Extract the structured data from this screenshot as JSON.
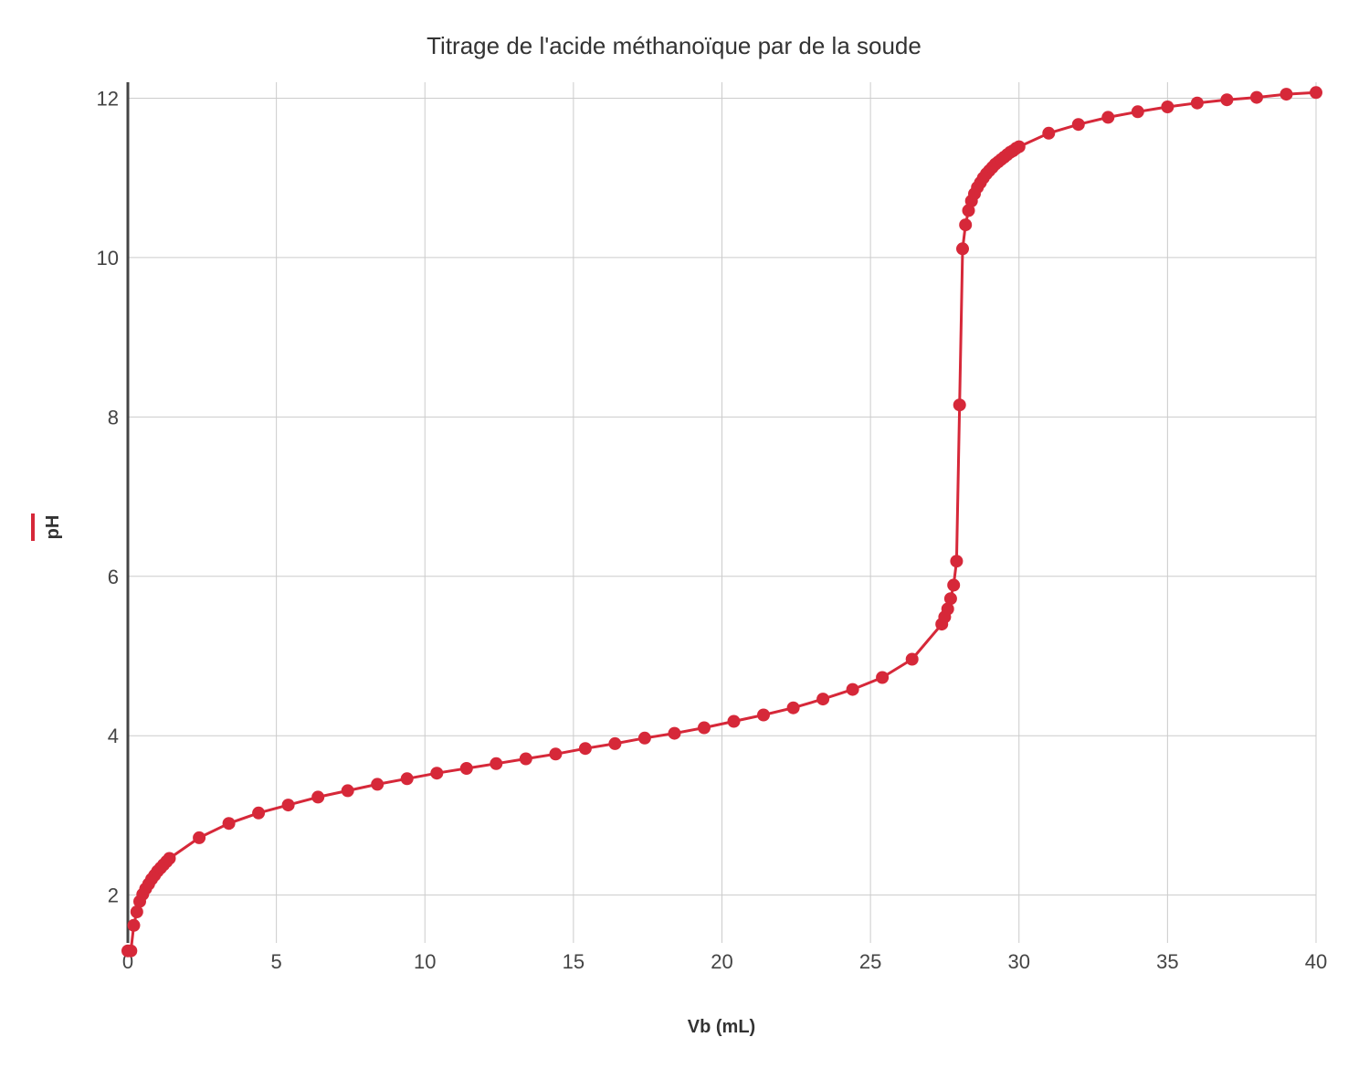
{
  "chart_data": {
    "type": "line",
    "title": "Titrage de l'acide méthanoïque par de la soude",
    "xlabel": "Vb (mL)",
    "ylabel": "pH",
    "xlim": [
      0,
      40
    ],
    "ylim": [
      1.4,
      12.2
    ],
    "x_ticks": [
      0,
      5,
      10,
      15,
      20,
      25,
      30,
      35,
      40
    ],
    "y_ticks": [
      2,
      4,
      6,
      8,
      10,
      12
    ],
    "grid": true,
    "legend": "none",
    "series": [
      {
        "color": "#d62839",
        "points": [
          [
            0,
            1.3
          ],
          [
            0.1,
            1.3
          ],
          [
            0.2,
            1.62
          ],
          [
            0.3,
            1.79
          ],
          [
            0.4,
            1.92
          ],
          [
            0.5,
            2.01
          ],
          [
            0.6,
            2.08
          ],
          [
            0.7,
            2.14
          ],
          [
            0.8,
            2.2
          ],
          [
            0.9,
            2.25
          ],
          [
            1.0,
            2.3
          ],
          [
            1.1,
            2.34
          ],
          [
            1.2,
            2.38
          ],
          [
            1.3,
            2.42
          ],
          [
            1.4,
            2.46
          ],
          [
            2.4,
            2.72
          ],
          [
            3.4,
            2.9
          ],
          [
            4.4,
            3.03
          ],
          [
            5.4,
            3.13
          ],
          [
            6.4,
            3.23
          ],
          [
            7.4,
            3.31
          ],
          [
            8.4,
            3.39
          ],
          [
            9.4,
            3.46
          ],
          [
            10.4,
            3.53
          ],
          [
            11.4,
            3.59
          ],
          [
            12.4,
            3.65
          ],
          [
            13.4,
            3.71
          ],
          [
            14.4,
            3.77
          ],
          [
            15.4,
            3.84
          ],
          [
            16.4,
            3.9
          ],
          [
            17.4,
            3.97
          ],
          [
            18.4,
            4.03
          ],
          [
            19.4,
            4.1
          ],
          [
            20.4,
            4.18
          ],
          [
            21.4,
            4.26
          ],
          [
            22.4,
            4.35
          ],
          [
            23.4,
            4.46
          ],
          [
            24.4,
            4.58
          ],
          [
            25.4,
            4.73
          ],
          [
            26.4,
            4.96
          ],
          [
            27.4,
            5.4
          ],
          [
            27.5,
            5.49
          ],
          [
            27.6,
            5.59
          ],
          [
            27.7,
            5.72
          ],
          [
            27.8,
            5.89
          ],
          [
            27.9,
            6.19
          ],
          [
            28.0,
            8.15
          ],
          [
            28.1,
            10.11
          ],
          [
            28.2,
            10.41
          ],
          [
            28.3,
            10.59
          ],
          [
            28.4,
            10.71
          ],
          [
            28.5,
            10.8
          ],
          [
            28.6,
            10.88
          ],
          [
            28.7,
            10.94
          ],
          [
            28.8,
            11.0
          ],
          [
            28.9,
            11.05
          ],
          [
            29.0,
            11.09
          ],
          [
            29.1,
            11.13
          ],
          [
            29.2,
            11.17
          ],
          [
            29.3,
            11.2
          ],
          [
            29.4,
            11.23
          ],
          [
            29.5,
            11.26
          ],
          [
            29.6,
            11.29
          ],
          [
            29.7,
            11.32
          ],
          [
            29.8,
            11.34
          ],
          [
            29.9,
            11.37
          ],
          [
            30.0,
            11.39
          ],
          [
            31.0,
            11.56
          ],
          [
            32.0,
            11.67
          ],
          [
            33.0,
            11.76
          ],
          [
            34.0,
            11.83
          ],
          [
            35.0,
            11.89
          ],
          [
            36.0,
            11.94
          ],
          [
            37.0,
            11.98
          ],
          [
            38.0,
            12.01
          ],
          [
            39.0,
            12.05
          ],
          [
            40.0,
            12.07
          ]
        ]
      }
    ]
  }
}
